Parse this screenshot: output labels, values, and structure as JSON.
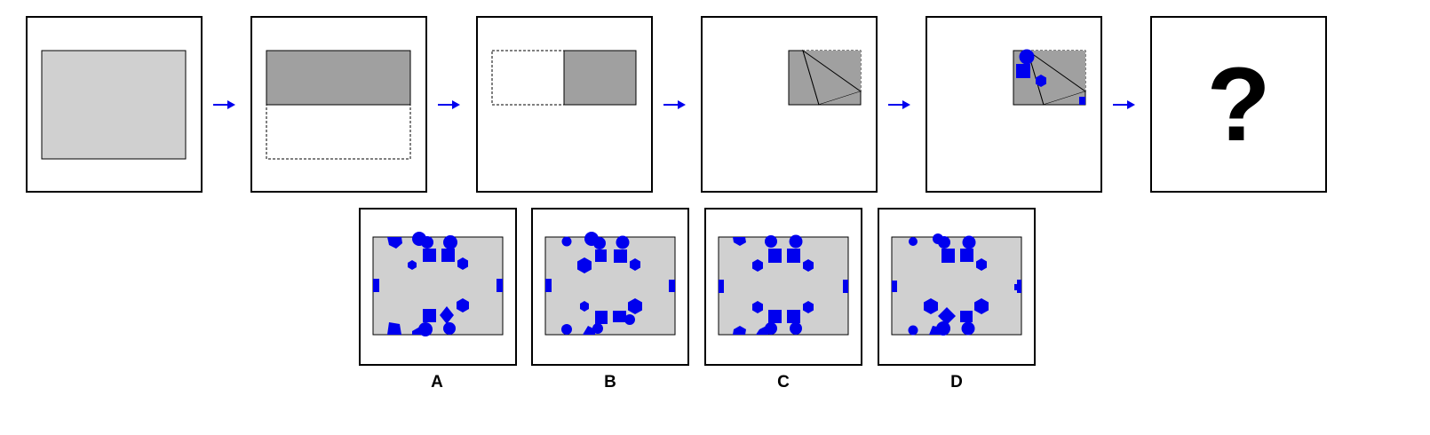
{
  "sequence": {
    "question_mark": "?",
    "colors": {
      "paper": "#d0d0d0",
      "paper_folded": "#a0a0a0",
      "hole": "#0000ee",
      "arrow": "#0000ee",
      "outline": "#000000"
    }
  },
  "options": [
    {
      "label": "A"
    },
    {
      "label": "B"
    },
    {
      "label": "C"
    },
    {
      "label": "D"
    }
  ]
}
